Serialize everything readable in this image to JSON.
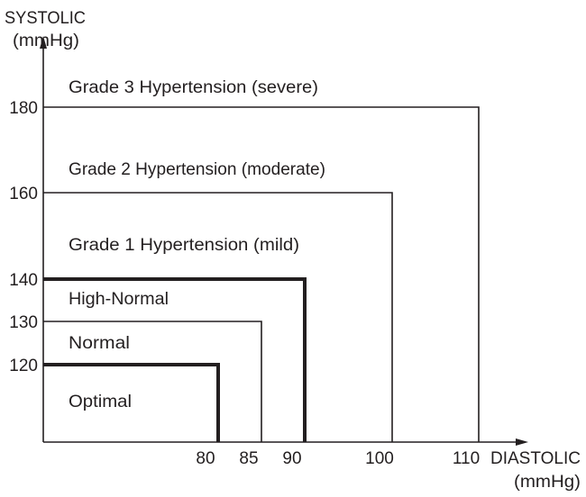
{
  "y_axis": {
    "label_line1": "SYSTOLIC",
    "label_line2": "(mmHg)",
    "ticks": [
      "120",
      "130",
      "140",
      "160",
      "180"
    ]
  },
  "x_axis": {
    "label_line1": "DIASTOLIC",
    "label_line2": "(mmHg)",
    "ticks": [
      "80",
      "85",
      "90",
      "100",
      "110"
    ]
  },
  "regions": [
    {
      "label": "Optimal",
      "systolic": 120,
      "diastolic": 80,
      "emphasis": true
    },
    {
      "label": "Normal",
      "systolic": 130,
      "diastolic": 85,
      "emphasis": false
    },
    {
      "label": "High-Normal",
      "systolic": 140,
      "diastolic": 90,
      "emphasis": true
    },
    {
      "label": "Grade 1 Hypertension (mild)",
      "systolic": 160,
      "diastolic": 100,
      "emphasis": false
    },
    {
      "label": "Grade 2 Hypertension (moderate)",
      "systolic": 180,
      "diastolic": 110,
      "emphasis": false
    },
    {
      "label": "Grade 3 Hypertension (severe)"
    }
  ],
  "colors": {
    "line": "#231f20"
  }
}
